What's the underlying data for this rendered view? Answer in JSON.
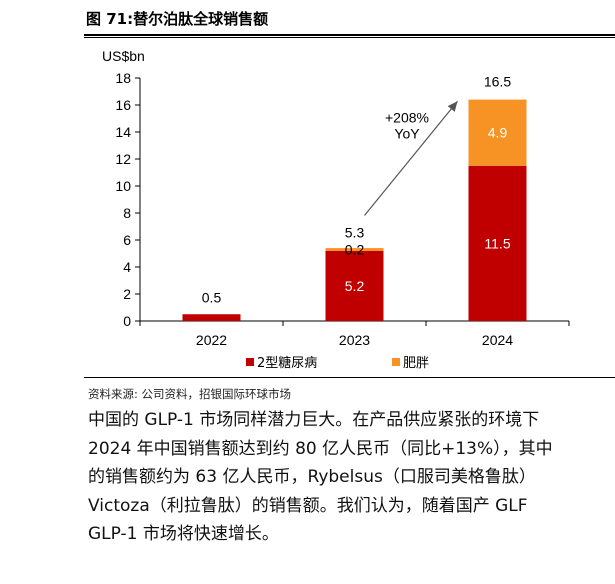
{
  "figure_title": "图 71:替尔泊肽全球销售额",
  "source_note": "资料来源: 公司资料，招银国际环球市场",
  "paragraph_lines": [
    "中国的 GLP-1 市场同样潜力巨大。在产品供应紧张的环境下",
    "2024 年中国销售额达到约 80 亿人民币（同比+13%），其中",
    "的销售额约为 63 亿人民币，Rybelsus（口服司美格鲁肽）",
    "Victoza（利拉鲁肽）的销售额。我们认为，随着国产 GLF",
    "GLP-1 市场将快速增长。"
  ],
  "colors": {
    "diabetes": "#C00000",
    "obesity": "#F79225",
    "axis": "#000000",
    "text": "#000000"
  },
  "chart_data": {
    "type": "bar",
    "stacked": true,
    "unit_label": "US$bn",
    "categories": [
      "2022",
      "2023",
      "2024"
    ],
    "series": [
      {
        "name": "2型糖尿病",
        "values": [
          0.5,
          5.2,
          11.5
        ],
        "color_key": "diabetes"
      },
      {
        "name": "肥胖",
        "values": [
          0,
          0.2,
          4.9
        ],
        "color_key": "obesity"
      }
    ],
    "totals": [
      0.5,
      5.3,
      16.5
    ],
    "segment_labels": [
      [
        "",
        "5.2",
        "11.5"
      ],
      [
        "",
        "0.2",
        "4.9"
      ]
    ],
    "total_labels": [
      "0.5",
      "5.3",
      "16.5"
    ],
    "annotation": {
      "text_lines": [
        "+208%",
        "YoY"
      ],
      "from_category": "2023",
      "to_category": "2024"
    },
    "ylim": [
      0,
      18
    ],
    "yticks": [
      0,
      2,
      4,
      6,
      8,
      10,
      12,
      14,
      16,
      18
    ],
    "grid": false,
    "legend_position": "bottom"
  }
}
